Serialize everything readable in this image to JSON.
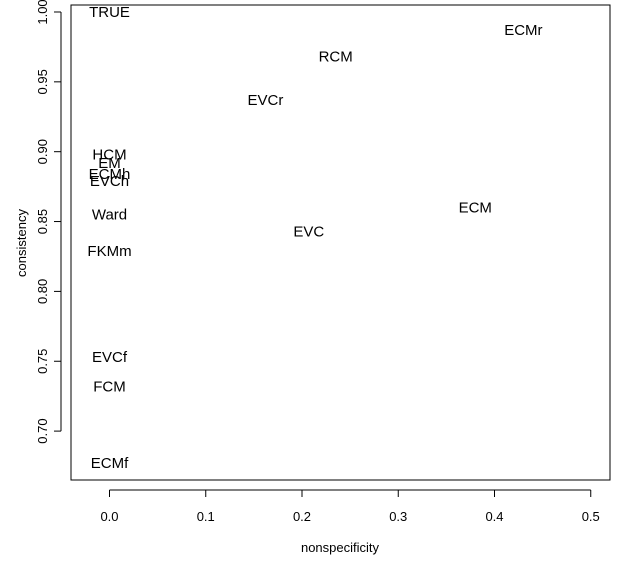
{
  "chart_data": {
    "type": "scatter",
    "title": "",
    "xlabel": "nonspecificity",
    "ylabel": "consistency",
    "xlim": [
      -0.04,
      0.52
    ],
    "ylim": [
      0.665,
      1.005
    ],
    "xticks": [
      "0.0",
      "0.1",
      "0.2",
      "0.3",
      "0.4",
      "0.5"
    ],
    "yticks": [
      "0.70",
      "0.75",
      "0.80",
      "0.85",
      "0.90",
      "0.95",
      "1.00"
    ],
    "grid": false,
    "legend": "none",
    "marker": "text-labels",
    "points": [
      {
        "label": "TRUE",
        "x": 0.0,
        "y": 1.0
      },
      {
        "label": "ECMr",
        "x": 0.43,
        "y": 0.987
      },
      {
        "label": "RCM",
        "x": 0.235,
        "y": 0.968
      },
      {
        "label": "EVCr",
        "x": 0.162,
        "y": 0.937
      },
      {
        "label": "HCM",
        "x": 0.0,
        "y": 0.898
      },
      {
        "label": "EM",
        "x": 0.0,
        "y": 0.892
      },
      {
        "label": "ECMh",
        "x": 0.0,
        "y": 0.884
      },
      {
        "label": "EVCh",
        "x": 0.0,
        "y": 0.879
      },
      {
        "label": "ECM",
        "x": 0.38,
        "y": 0.86
      },
      {
        "label": "Ward",
        "x": 0.0,
        "y": 0.855
      },
      {
        "label": "EVC",
        "x": 0.207,
        "y": 0.843
      },
      {
        "label": "FKMm",
        "x": 0.0,
        "y": 0.829
      },
      {
        "label": "EVCf",
        "x": 0.0,
        "y": 0.753
      },
      {
        "label": "FCM",
        "x": 0.0,
        "y": 0.732
      },
      {
        "label": "ECMf",
        "x": 0.0,
        "y": 0.677
      }
    ]
  }
}
